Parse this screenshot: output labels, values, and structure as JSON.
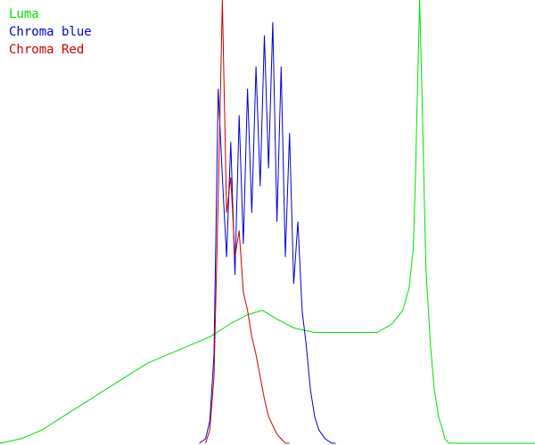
{
  "chart_data": {
    "type": "line",
    "title": "",
    "xlabel": "",
    "ylabel": "",
    "grid": false,
    "legend_position": "top-left",
    "xlim": [
      0,
      255
    ],
    "ylim": [
      0,
      100
    ],
    "series": [
      {
        "name": "Luma",
        "color": "#00dd00",
        "x": [
          0,
          10,
          20,
          30,
          40,
          50,
          60,
          70,
          80,
          90,
          100,
          110,
          118,
          125,
          132,
          140,
          150,
          160,
          170,
          180,
          187,
          192,
          195,
          197,
          198,
          199,
          200,
          201,
          202,
          203,
          205,
          207,
          209,
          211,
          212,
          214,
          255
        ],
        "y": [
          0,
          1,
          3,
          6,
          9,
          12,
          15,
          18,
          20,
          22,
          24,
          27,
          29,
          30,
          28,
          26,
          25,
          25,
          25,
          25,
          27,
          30,
          35,
          44,
          60,
          80,
          100,
          82,
          60,
          40,
          23,
          12,
          6,
          3,
          1,
          0,
          0
        ]
      },
      {
        "name": "Chroma blue",
        "color": "#0000cc",
        "x": [
          95,
          98,
          100,
          102,
          104,
          106,
          108,
          110,
          112,
          114,
          116,
          118,
          120,
          122,
          124,
          126,
          128,
          130,
          132,
          134,
          136,
          138,
          140,
          142,
          144,
          146,
          148,
          150,
          152,
          155,
          158,
          160
        ],
        "y": [
          0,
          1,
          5,
          20,
          80,
          60,
          42,
          68,
          38,
          74,
          45,
          80,
          52,
          85,
          58,
          92,
          62,
          95,
          50,
          85,
          42,
          70,
          36,
          50,
          30,
          22,
          12,
          6,
          3,
          1,
          0,
          0
        ]
      },
      {
        "name": "Chroma Red",
        "color": "#cc0000",
        "x": [
          98,
          100,
          102,
          104,
          106,
          108,
          110,
          112,
          114,
          116,
          118,
          120,
          122,
          124,
          126,
          128,
          130,
          132,
          134,
          136,
          138
        ],
        "y": [
          0,
          3,
          15,
          55,
          100,
          52,
          60,
          42,
          48,
          34,
          30,
          24,
          20,
          15,
          10,
          6,
          4,
          2,
          1,
          0,
          0
        ]
      }
    ]
  }
}
